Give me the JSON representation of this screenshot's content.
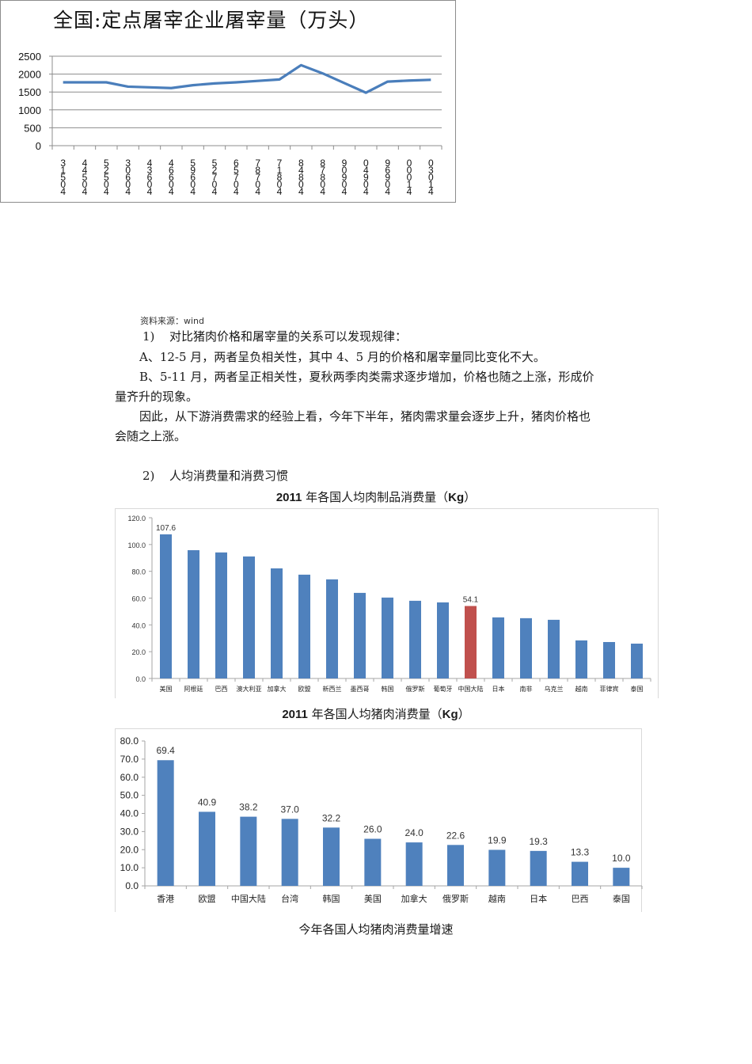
{
  "chart_data": [
    {
      "type": "line",
      "title": "全国:定点屠宰企业屠宰量（万头）",
      "xlabel": "",
      "ylabel": "",
      "categories": [
        "31504",
        "44504",
        "52504",
        "30604",
        "43604",
        "46604",
        "59604",
        "52704",
        "65704",
        "78704",
        "71804",
        "84804",
        "87804",
        "90904",
        "04904",
        "96904",
        "00014",
        "03014"
      ],
      "values": [
        1770,
        1770,
        1770,
        1650,
        1630,
        1610,
        1690,
        1740,
        1770,
        1810,
        1850,
        2250,
        2020,
        1750,
        1480,
        1790,
        1820,
        1840
      ],
      "ylim": [
        0,
        2500
      ],
      "yticks": [
        0,
        500,
        1000,
        1500,
        2000,
        2500
      ],
      "grid": true,
      "legend": "none",
      "color": "#4a7ebb"
    },
    {
      "type": "bar",
      "title": "2011年各国人均肉制品消费量（Kg）",
      "categories": [
        "美国",
        "阿根廷",
        "巴西",
        "澳大利亚",
        "加拿大",
        "欧盟",
        "新西兰",
        "墨西哥",
        "韩国",
        "俄罗斯",
        "葡萄牙",
        "中国大陆",
        "日本",
        "南非",
        "乌克兰",
        "越南",
        "菲律宾",
        "泰国"
      ],
      "values": [
        107.6,
        95.8,
        94.1,
        91.1,
        82.2,
        77.5,
        74.0,
        63.9,
        60.4,
        58.0,
        56.8,
        54.1,
        45.6,
        45.0,
        43.8,
        28.4,
        27.2,
        26.0
      ],
      "data_labels": {
        "0": "107.6",
        "11": "54.1"
      },
      "highlight_index": 11,
      "ylim": [
        0,
        120
      ],
      "yticks": [
        "0.0",
        "20.0",
        "40.0",
        "60.0",
        "80.0",
        "100.0",
        "120.0"
      ],
      "grid": false,
      "legend": "none",
      "colors": {
        "bar": "#4f81bd",
        "highlight": "#c0504d"
      }
    },
    {
      "type": "bar",
      "title": "2011年各国人均猪肉消费量（Kg）",
      "categories": [
        "香港",
        "欧盟",
        "中国大陆",
        "台湾",
        "韩国",
        "美国",
        "加拿大",
        "俄罗斯",
        "越南",
        "日本",
        "巴西",
        "泰国"
      ],
      "values": [
        69.4,
        40.9,
        38.2,
        37.0,
        32.2,
        26.0,
        24.0,
        22.6,
        19.9,
        19.3,
        13.3,
        10.0
      ],
      "data_labels": [
        "69.4",
        "40.9",
        "38.2",
        "37.0",
        "32.2",
        "26.0",
        "24.0",
        "22.6",
        "19.9",
        "19.3",
        "13.3",
        "10.0"
      ],
      "ylim": [
        0,
        80
      ],
      "yticks": [
        "0.0",
        "10.0",
        "20.0",
        "30.0",
        "40.0",
        "50.0",
        "60.0",
        "70.0",
        "80.0"
      ],
      "grid": false,
      "legend": "none",
      "colors": {
        "bar": "#4f81bd"
      }
    }
  ],
  "document": {
    "source_note": "资料来源：wind",
    "section1": {
      "number": "1)",
      "heading": "对比猪肉价格和屠宰量的关系可以发现规律：",
      "point_a": "A、12-5 月，两者呈负相关性，其中 4、5 月的价格和屠宰量同比变化不大。",
      "point_b_line1": "B、5-11 月，两者呈正相关性，夏秋两季肉类需求逐步增加，价格也随之上涨，形成价",
      "point_b_line2": "量齐升的现象。",
      "conclusion_line1": "因此，从下游消费需求的经验上看，今年下半年，猪肉需求量会逐步上升，猪肉价格也",
      "conclusion_line2": "会随之上涨。"
    },
    "section2": {
      "number": "2)",
      "heading": "人均消费量和消费习惯"
    },
    "chart2_caption": {
      "year": "2011",
      "text": " 年各国人均肉制品消费量（",
      "unit": "Kg",
      "close": "）"
    },
    "chart3_caption": {
      "year": "2011",
      "text": " 年各国人均猪肉消费量（",
      "unit": "Kg",
      "close": "）"
    },
    "next_caption": "今年各国人均猪肉消费量增速"
  }
}
